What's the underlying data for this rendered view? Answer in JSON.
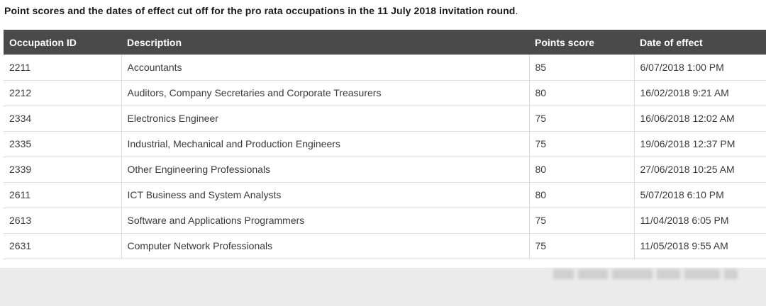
{
  "caption": {
    "text": "Point scores and the dates of effect cut off for the pro rata occupations in the 11 July 2018 invitation round",
    "period": "."
  },
  "table": {
    "headers": [
      "Occupation ID",
      "Description",
      "Points score",
      "Date of effect"
    ],
    "rows": [
      [
        "2211",
        "Accountants",
        "85",
        "6/07/2018 1:00 PM"
      ],
      [
        "2212",
        "Auditors, Company Secretaries and Corporate Treasurers",
        "80",
        "16/02/2018 9:21 AM"
      ],
      [
        "2334",
        "Electronics Engineer",
        "75",
        "16/06/2018 12:02 AM"
      ],
      [
        "2335",
        "Industrial, Mechanical and Production Engineers",
        "75",
        "19/06/2018 12:37 PM"
      ],
      [
        "2339",
        "Other Engineering Professionals",
        "80",
        "27/06/2018 10:25 AM"
      ],
      [
        "2611",
        "ICT Business and System Analysts",
        "80",
        "5/07/2018 6:10 PM"
      ],
      [
        "2613",
        "Software and Applications Programmers",
        "75",
        "11/04/2018 6:05 PM"
      ],
      [
        "2631",
        "Computer Network Professionals",
        "75",
        "11/05/2018 9:55 AM"
      ]
    ]
  },
  "colors": {
    "header_background": "#4a4a4a",
    "header_text": "#ffffff",
    "page_background": "#ebebeb",
    "grid_line": "#dcdcdc"
  }
}
